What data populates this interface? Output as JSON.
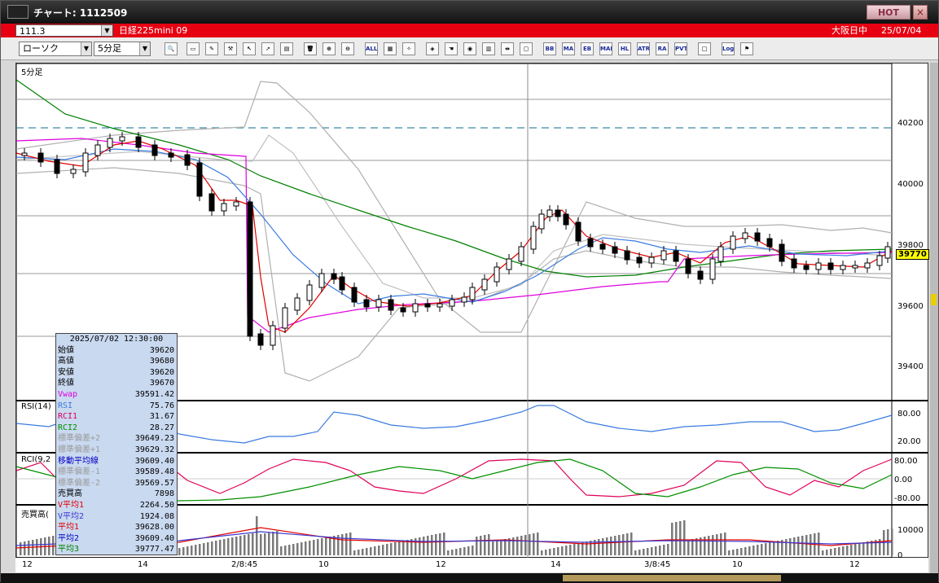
{
  "window": {
    "title": "チャート: 1112509",
    "hot_label": "HOT",
    "close_label": "×"
  },
  "symbol_bar": {
    "code": "111.3",
    "name": "日経225mini 09",
    "market": "大阪日中",
    "date": "25/07/04"
  },
  "toolbar": {
    "chart_type": "ローソク",
    "timeframe": "5分足",
    "icons": [
      "search-icon",
      "window-icon",
      "pen-icon",
      "tool-icon",
      "cursor-icon",
      "arrow-icon",
      "document-icon",
      "trash-icon",
      "zoom-in-icon",
      "zoom-out-icon",
      "all-icon",
      "grid-icon",
      "wrench-icon",
      "palette-icon",
      "hand-icon",
      "magnify-icon",
      "table-icon",
      "split-icon",
      "lock-icon",
      "bb-icon",
      "ma-icon",
      "eb-icon",
      "mae-icon",
      "hl-icon",
      "atr-icon",
      "ra-icon",
      "pvt-icon",
      "box-icon",
      "log-icon",
      "flag-icon"
    ],
    "buttons": {
      "all": "ALL",
      "bb": "BB",
      "ma": "MA",
      "eb": "EB",
      "mae": "MAE",
      "hl": "HL",
      "atr": "ATR",
      "ra": "RA",
      "pvt": "PVT",
      "log": "Log"
    }
  },
  "panels": {
    "price": {
      "label": "5分足",
      "current_price": "39770",
      "y_ticks": [
        "40200",
        "40000",
        "39800",
        "39600",
        "39400"
      ]
    },
    "rsi": {
      "label": "RSI(14)",
      "y_ticks": [
        "80.00",
        "20.00"
      ]
    },
    "rci": {
      "label": "RCI(9,2",
      "y_ticks": [
        "80.00",
        "0.00",
        "-80.00"
      ]
    },
    "volume": {
      "label": "売買高(",
      "y_ticks": [
        "10000",
        "0"
      ]
    }
  },
  "x_axis": {
    "labels": [
      "12",
      "14",
      "2/8:45",
      "10",
      "12",
      "14",
      "3/8:45",
      "10",
      "12"
    ]
  },
  "info_box": {
    "datetime": "2025/07/02 12:30:00",
    "rows": [
      {
        "key": "始値",
        "value": "39620",
        "color": "#000000"
      },
      {
        "key": "高値",
        "value": "39680",
        "color": "#000000"
      },
      {
        "key": "安値",
        "value": "39620",
        "color": "#000000"
      },
      {
        "key": "終値",
        "value": "39670",
        "color": "#000000"
      },
      {
        "key": "Vwap",
        "value": "39591.42",
        "color": "#e000e0"
      },
      {
        "key": "RSI",
        "value": "75.76",
        "color": "#3a7be0"
      },
      {
        "key": "RCI1",
        "value": "31.67",
        "color": "#e0005a"
      },
      {
        "key": "RCI2",
        "value": "28.27",
        "color": "#009000"
      },
      {
        "key": "標準偏差+2",
        "value": "39649.23",
        "color": "#9a9a9a"
      },
      {
        "key": "標準偏差+1",
        "value": "39629.32",
        "color": "#9a9a9a"
      },
      {
        "key": "移動平均線",
        "value": "39609.40",
        "color": "#0000c0"
      },
      {
        "key": "標準偏差-1",
        "value": "39589.48",
        "color": "#9a9a9a"
      },
      {
        "key": "標準偏差-2",
        "value": "39569.57",
        "color": "#9a9a9a"
      },
      {
        "key": "売買高",
        "value": "7898",
        "color": "#000000"
      },
      {
        "key": "V平均1",
        "value": "2264.50",
        "color": "#e00000"
      },
      {
        "key": "V平均2",
        "value": "1924.08",
        "color": "#3a3ad0"
      },
      {
        "key": "平均1",
        "value": "39628.00",
        "color": "#e00000"
      },
      {
        "key": "平均2",
        "value": "39609.40",
        "color": "#0000c0"
      },
      {
        "key": "平均3",
        "value": "39777.47",
        "color": "#008000"
      }
    ]
  },
  "colors": {
    "sma_short": "#e00000",
    "sma_mid": "#3a7be0",
    "sma_long": "#008000",
    "vwap": "#e000e0",
    "bands": "#b0b0b0",
    "rsi": "#3a7be0",
    "rci1": "#e0005a",
    "rci2": "#009000",
    "candle_up": "#ffffff",
    "candle_down": "#000000",
    "title_accent": "#e60012"
  }
}
